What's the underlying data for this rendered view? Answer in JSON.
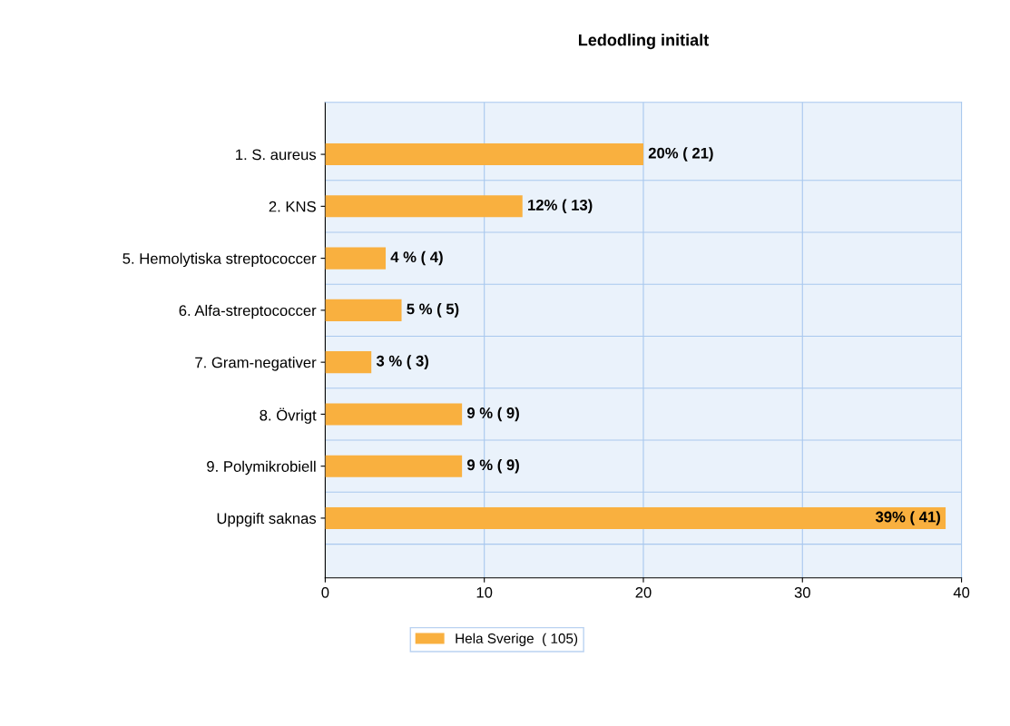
{
  "chart_data": {
    "type": "bar",
    "orientation": "horizontal",
    "title": "Ledodling initialt",
    "categories": [
      "1. S. aureus",
      "2. KNS",
      "5. Hemolytiska streptococcer",
      "6. Alfa-streptococcer",
      "7. Gram-negativer",
      "8. Övrigt",
      "9. Polymikrobiell",
      "Uppgift saknas"
    ],
    "series": [
      {
        "name": "Hela Sverige  ( 105)",
        "color": "#f9b03f",
        "values": [
          20.0,
          12.4,
          3.8,
          4.8,
          2.9,
          8.6,
          8.6,
          39.0
        ],
        "value_labels": [
          "20% ( 21)",
          "12% ( 13)",
          "4 % ( 4)",
          "5 % ( 5)",
          "3 % ( 3)",
          "9 % ( 9)",
          "9 % ( 9)",
          "39% ( 41)"
        ]
      }
    ],
    "xlim": [
      0,
      40
    ],
    "xticks": [
      0,
      10,
      20,
      30,
      40
    ],
    "grid": true,
    "legend": "bottom"
  }
}
